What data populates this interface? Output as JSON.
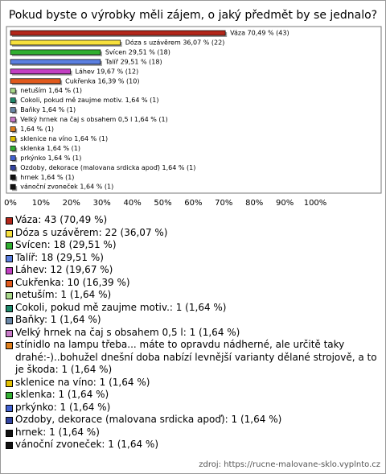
{
  "chart_data": {
    "type": "bar",
    "orientation": "horizontal",
    "title": "Pokud byste o výrobky měli zájem, o jaký předmět by se jednalo?",
    "values": [
      70.49,
      36.07,
      29.51,
      29.51,
      19.67,
      16.39,
      1.64,
      1.64,
      1.64,
      1.64,
      1.64,
      1.64,
      1.64,
      1.64,
      1.64,
      1.64,
      1.64
    ],
    "value_labels": [
      "Váza 70,49 % (43)",
      "Dóza s uzávěrem 36,07 % (22)",
      "Svícen 29,51 % (18)",
      "Talíř 29,51 % (18)",
      "Láhev 19,67 % (12)",
      "Cukřenka 16,39 % (10)",
      "netuším 1,64 % (1)",
      "Cokoli, pokud mě zaujme motiv. 1,64 % (1)",
      "Baňky 1,64 % (1)",
      "Velký hrnek na čaj s obsahem 0,5 l 1,64 % (1)",
      "1,64 % (1)",
      "sklenice na víno 1,64 % (1)",
      "sklenka 1,64 % (1)",
      "prkýnko 1,64 % (1)",
      "Ozdoby, dekorace (malovana srdicka apoď) 1,64 % (1)",
      "hrnek 1,64 % (1)",
      "vánoční zvoneček 1,64 % (1)"
    ],
    "colors": [
      "#b3261a",
      "#f7e03c",
      "#2fae2f",
      "#5b7fe0",
      "#c23fc2",
      "#e0591c",
      "#a8d88a",
      "#1f8a6c",
      "#6a88a8",
      "#c87ac8",
      "#e0801e",
      "#e2c000",
      "#33b033",
      "#4262d2",
      "#3244a2",
      "#111111",
      "#111111"
    ],
    "legend": [
      "Váza: 43 (70,49 %)",
      "Dóza s uzávěrem: 22 (36,07 %)",
      "Svícen: 18 (29,51 %)",
      "Talíř: 18 (29,51 %)",
      "Láhev: 12 (19,67 %)",
      "Cukřenka: 10 (16,39 %)",
      "netuším: 1 (1,64 %)",
      "Cokoli, pokud mě zaujme motiv.: 1 (1,64 %)",
      "Baňky: 1 (1,64 %)",
      "Velký hrnek na čaj s obsahem 0,5 l: 1 (1,64 %)",
      "stínidlo na lampu třeba... máte to opravdu nádherné, ale určitě taky drahé:-)..bohužel dnešní doba nabízí levnější varianty dělané strojově, a to je škoda: 1 (1,64 %)",
      "sklenice na víno: 1 (1,64 %)",
      "sklenka: 1 (1,64 %)",
      "prkýnko: 1 (1,64 %)",
      "Ozdoby, dekorace (malovana srdicka apoď): 1 (1,64 %)",
      "hrnek: 1 (1,64 %)",
      "vánoční zvoneček: 1 (1,64 %)"
    ],
    "xlim": [
      0,
      100
    ],
    "xticks": [
      {
        "value": 0,
        "label": "0%"
      },
      {
        "value": 10,
        "label": "10%"
      },
      {
        "value": 20,
        "label": "20%"
      },
      {
        "value": 30,
        "label": "30%"
      },
      {
        "value": 40,
        "label": "40%"
      },
      {
        "value": 50,
        "label": "50%"
      },
      {
        "value": 60,
        "label": "60%"
      },
      {
        "value": 70,
        "label": "70%"
      },
      {
        "value": 80,
        "label": "80%"
      },
      {
        "value": 90,
        "label": "90%"
      },
      {
        "value": 100,
        "label": "100%"
      }
    ],
    "grid": false,
    "source": "zdroj: https://rucne-malovane-sklo.vyplnto.cz"
  }
}
